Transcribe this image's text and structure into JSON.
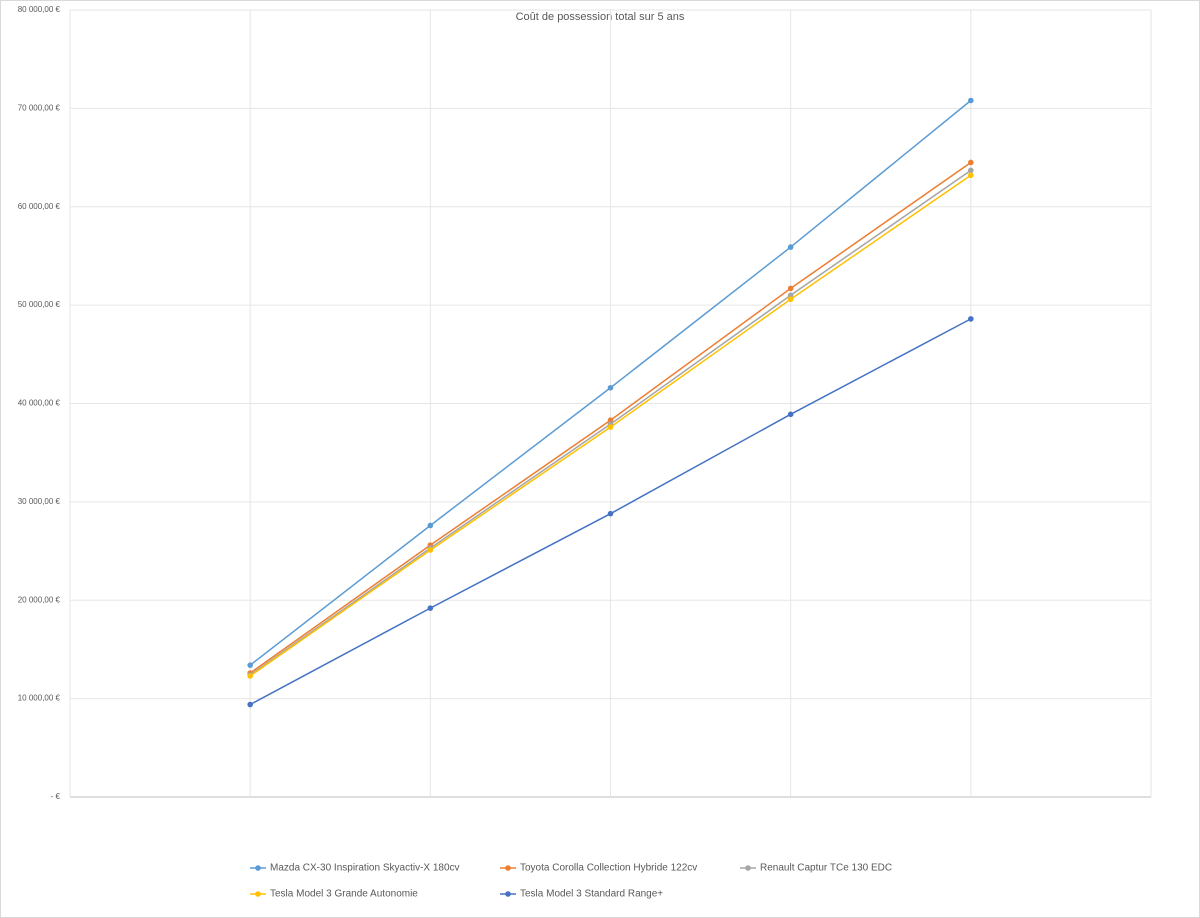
{
  "chart_data": {
    "type": "line",
    "title": "Coût de possession total sur 5 ans",
    "categories": [
      null,
      null,
      null,
      null,
      null
    ],
    "series": [
      {
        "name": "Mazda CX-30  Inspiration Skyactiv-X 180cv",
        "color": "#5b9bd5",
        "values": [
          13400,
          27600,
          41600,
          55900,
          70800
        ]
      },
      {
        "name": "Toyota Corolla Collection Hybride 122cv",
        "color": "#ed7d31",
        "values": [
          12600,
          25600,
          38300,
          51700,
          64500
        ]
      },
      {
        "name": "Renault Captur TCe 130 EDC",
        "color": "#a5a5a5",
        "values": [
          12400,
          25300,
          37900,
          51000,
          63700
        ]
      },
      {
        "name": "Tesla Model 3 Grande Autonomie",
        "color": "#ffc000",
        "values": [
          12300,
          25100,
          37600,
          50600,
          63200
        ]
      },
      {
        "name": "Tesla Model 3 Standard Range+",
        "color": "#4472c4",
        "values": [
          9400,
          19200,
          28800,
          38900,
          48600
        ]
      }
    ],
    "ylim": [
      0,
      80000
    ],
    "yticks": [
      {
        "value": 0,
        "label": " - €"
      },
      {
        "value": 10000,
        "label": "10 000,00 €"
      },
      {
        "value": 20000,
        "label": "20 000,00 €"
      },
      {
        "value": 30000,
        "label": "30 000,00 €"
      },
      {
        "value": 40000,
        "label": "40 000,00 €"
      },
      {
        "value": 50000,
        "label": "50 000,00 €"
      },
      {
        "value": 60000,
        "label": "60 000,00 €"
      },
      {
        "value": 70000,
        "label": "70 000,00 €"
      },
      {
        "value": 80000,
        "label": "80 000,00 €"
      }
    ],
    "grid": true,
    "legend": "bottom"
  }
}
